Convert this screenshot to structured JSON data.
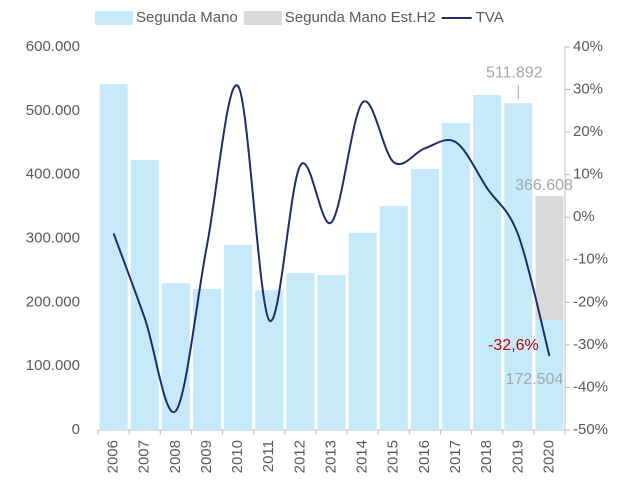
{
  "chart_data": {
    "type": "bar",
    "categories": [
      "2006",
      "2007",
      "2008",
      "2009",
      "2010",
      "2011",
      "2012",
      "2013",
      "2014",
      "2015",
      "2016",
      "2017",
      "2018",
      "2019",
      "2020"
    ],
    "series": [
      {
        "name": "Segunda Mano",
        "color": "#c6eafa",
        "values": [
          542000,
          423000,
          230000,
          221000,
          290000,
          219000,
          246000,
          243000,
          309000,
          351000,
          409000,
          481000,
          525000,
          511892,
          172504
        ],
        "value_labels": [
          null,
          null,
          null,
          null,
          null,
          null,
          null,
          null,
          null,
          null,
          null,
          null,
          null,
          "511.892",
          "172.504"
        ]
      },
      {
        "name": "Segunda Mano Est.H2",
        "color": "#d9d9d9",
        "stack": true,
        "values": [
          null,
          null,
          null,
          null,
          null,
          null,
          null,
          null,
          null,
          null,
          null,
          null,
          null,
          null,
          194104
        ]
      },
      {
        "name": "TVA",
        "type": "line",
        "axis": "y2",
        "color": "#1f2d6e",
        "values": [
          -3.8,
          -23.7,
          -45.5,
          -6.6,
          30.8,
          -24.2,
          12.2,
          -1.2,
          27,
          12.9,
          16.2,
          17.6,
          6.8,
          -4.2,
          -32.6
        ],
        "value_labels": [
          null,
          null,
          null,
          null,
          null,
          null,
          null,
          null,
          null,
          null,
          null,
          null,
          null,
          null,
          "-32,6%"
        ],
        "value_label_color": "#c00000"
      }
    ],
    "annotations": [
      "366.608"
    ],
    "ylim": [
      0,
      600000
    ],
    "yticks": [
      0,
      {
        "value": 100000,
        "label": "100.000"
      },
      {
        "value": 200000,
        "label": "200.000"
      },
      {
        "value": 300000,
        "label": "300.000"
      },
      {
        "value": 400000,
        "label": "400.000"
      },
      {
        "value": 500000,
        "label": "500.000"
      },
      {
        "value": 600000,
        "label": "600.000"
      }
    ],
    "y2lim": [
      -50,
      40
    ],
    "y2ticks": [
      {
        "value": -50,
        "label": "-50%"
      },
      {
        "value": -40,
        "label": "-40%"
      },
      {
        "value": -30,
        "label": "-30%"
      },
      {
        "value": -20,
        "label": "-20%"
      },
      {
        "value": -10,
        "label": "-10%"
      },
      {
        "value": 0,
        "label": "0%"
      },
      {
        "value": 10,
        "label": "10%"
      },
      {
        "value": 20,
        "label": "20%"
      },
      {
        "value": 30,
        "label": "30%"
      },
      {
        "value": 40,
        "label": "40%"
      }
    ],
    "legend": "top"
  }
}
